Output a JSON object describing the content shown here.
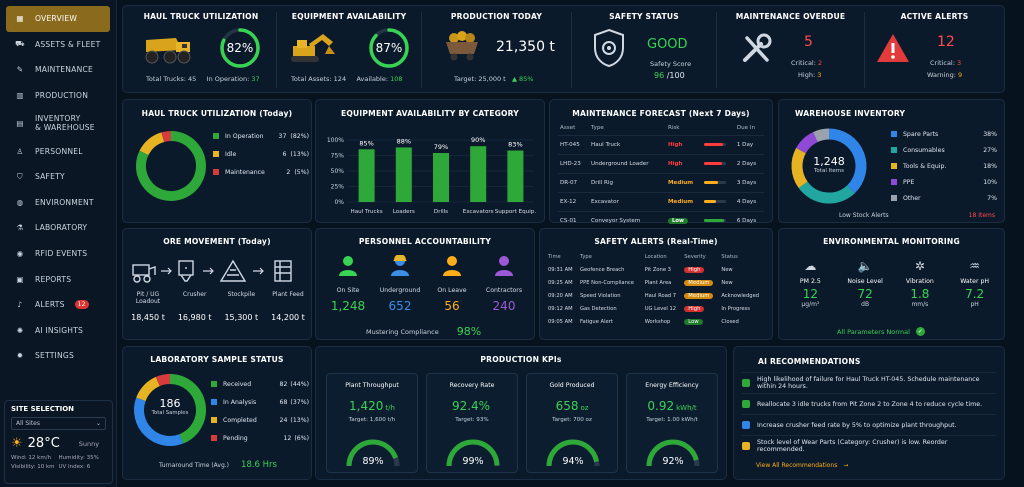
{
  "nav": [
    {
      "label": "OVERVIEW",
      "icon": "grid-icon"
    },
    {
      "label": "ASSETS & FLEET",
      "icon": "truck-icon"
    },
    {
      "label": "MAINTENANCE",
      "icon": "wrench-icon"
    },
    {
      "label": "PRODUCTION",
      "icon": "factory-icon"
    },
    {
      "label": "INVENTORY & WAREHOUSE",
      "l2": "& WAREHOUSE",
      "l1": "INVENTORY",
      "icon": "boxes-icon"
    },
    {
      "label": "PERSONNEL",
      "icon": "person-icon"
    },
    {
      "label": "SAFETY",
      "icon": "shield-icon"
    },
    {
      "label": "ENVIRONMENT",
      "icon": "globe-icon"
    },
    {
      "label": "LABORATORY",
      "icon": "flask-icon"
    },
    {
      "label": "RFID EVENTS",
      "icon": "rfid-icon"
    },
    {
      "label": "REPORTS",
      "icon": "report-icon"
    },
    {
      "label": "ALERTS",
      "icon": "bell-icon",
      "badge": "12"
    },
    {
      "label": "AI INSIGHTS",
      "icon": "ai-icon"
    },
    {
      "label": "SETTINGS",
      "icon": "gear-icon"
    }
  ],
  "site": {
    "title": "SITE SELECTION",
    "selected": "All Sites",
    "temp": "28°C",
    "cond": "Sunny",
    "wind": "Wind: 12 km/h",
    "humidity": "Humidity: 35%",
    "visibility": "Visibility: 10 km",
    "uv": "UV Index: 6"
  },
  "kpis": {
    "haul": {
      "title": "HAUL TRUCK UTILIZATION",
      "pct": "82%",
      "pct_value": 0.82,
      "total_label": "Total Trucks:",
      "total": "45",
      "op_label": "In Operation:",
      "op": "37"
    },
    "equip": {
      "title": "EQUIPMENT AVAILABILITY",
      "pct": "87%",
      "pct_value": 0.87,
      "total_label": "Total Assets:",
      "total": "124",
      "avail_label": "Available:",
      "avail": "108"
    },
    "prod": {
      "title": "PRODUCTION TODAY",
      "value": "21,350 t",
      "target": "Target: 25,000 t",
      "delta": "▲ 85%"
    },
    "safety": {
      "title": "SAFETY STATUS",
      "status": "GOOD",
      "score_label": "Safety Score",
      "score": "96",
      "score_of": "/100"
    },
    "maint": {
      "title": "MAINTENANCE OVERDUE",
      "value": "5",
      "crit_label": "Critical:",
      "crit": "2",
      "high_label": "High:",
      "high": "3"
    },
    "alerts": {
      "title": "ACTIVE ALERTS",
      "value": "12",
      "crit_label": "Critical:",
      "crit": "3",
      "warn_label": "Warning:",
      "warn": "9"
    }
  },
  "haul_today": {
    "title": "HAUL TRUCK UTILIZATION (Today)",
    "legend": [
      {
        "label": "In Operation",
        "count": "37",
        "pct": "(82%)",
        "color": "#2fa83a",
        "value": 37
      },
      {
        "label": "Idle",
        "count": "6",
        "pct": "(13%)",
        "color": "#e6b422",
        "value": 6
      },
      {
        "label": "Maintenance",
        "count": "2",
        "pct": "(5%)",
        "color": "#d63c3c",
        "value": 2
      }
    ]
  },
  "chart_data": {
    "type": "bar",
    "title": "EQUIPMENT AVAILABILITY BY CATEGORY",
    "categories": [
      "Haul Trucks",
      "Loaders",
      "Drills",
      "Excavators",
      "Support Equip."
    ],
    "values": [
      85,
      88,
      79,
      90,
      83
    ],
    "value_labels": [
      "85%",
      "88%",
      "79%",
      "90%",
      "83%"
    ],
    "ylim": [
      0,
      100
    ],
    "yticks": [
      "0%",
      "25%",
      "50%",
      "75%",
      "100%"
    ],
    "color": "#2fa83a"
  },
  "maint_forecast": {
    "title": "MAINTENANCE FORECAST (Next 7 Days)",
    "headers": [
      "Asset",
      "Type",
      "Risk",
      "Due In"
    ],
    "rows": [
      {
        "asset": "HT-045",
        "type": "Haul Truck",
        "risk": "High",
        "due": "1 Day",
        "level": 0.85,
        "color": "#ff3b3b"
      },
      {
        "asset": "LHD-23",
        "type": "Underground Loader",
        "risk": "High",
        "due": "2 Days",
        "level": 0.8,
        "color": "#ff3b3b"
      },
      {
        "asset": "DR-07",
        "type": "Drill Rig",
        "risk": "Medium",
        "due": "3 Days",
        "level": 0.6,
        "color": "#ffae1a"
      },
      {
        "asset": "EX-12",
        "type": "Excavator",
        "risk": "Medium",
        "due": "4 Days",
        "level": 0.55,
        "color": "#ffae1a"
      },
      {
        "asset": "CS-01",
        "type": "Conveyor System",
        "risk": "Low",
        "due": "6 Days",
        "level": 0.9,
        "color": "#2fa83a"
      }
    ]
  },
  "warehouse": {
    "title": "WAREHOUSE INVENTORY",
    "total": "1,248",
    "total_label": "Total Items",
    "low_label": "Low Stock Alerts",
    "low": "18 Items",
    "legend": [
      {
        "label": "Spare Parts",
        "pct": "38%",
        "value": 38,
        "color": "#2f86e8"
      },
      {
        "label": "Consumables",
        "pct": "27%",
        "value": 27,
        "color": "#22a6a0"
      },
      {
        "label": "Tools & Equip.",
        "pct": "18%",
        "value": 18,
        "color": "#e6b422"
      },
      {
        "label": "PPE",
        "pct": "10%",
        "value": 10,
        "color": "#8e4ad6"
      },
      {
        "label": "Other",
        "pct": "7%",
        "value": 7,
        "color": "#9aa3ad"
      }
    ]
  },
  "ore": {
    "title": "ORE MOVEMENT (Today)",
    "steps": [
      {
        "label": "Pit / UG",
        "label2": "Loadout",
        "value": "18,450 t"
      },
      {
        "label": "Crusher",
        "label2": "",
        "value": "16,980 t"
      },
      {
        "label": "Stockpile",
        "label2": "",
        "value": "15,300 t"
      },
      {
        "label": "Plant Feed",
        "label2": "",
        "value": "14,200 t"
      }
    ]
  },
  "personnel": {
    "title": "PERSONNEL ACCOUNTABILITY",
    "groups": [
      {
        "label": "On Site",
        "value": "1,248",
        "color": "#39d353"
      },
      {
        "label": "Underground",
        "value": "652",
        "color": "#3a8ee6"
      },
      {
        "label": "On Leave",
        "value": "56",
        "color": "#ffae1a"
      },
      {
        "label": "Contractors",
        "value": "240",
        "color": "#9b59d6"
      }
    ],
    "muster_label": "Mustering Compliance",
    "muster": "98%"
  },
  "safety_alerts": {
    "title": "SAFETY ALERTS (Real-Time)",
    "headers": [
      "Time",
      "Type",
      "Location",
      "Severity",
      "Status"
    ],
    "rows": [
      [
        "09:31 AM",
        "Geofence Breach",
        "Pit Zone 3",
        "High",
        "New"
      ],
      [
        "09:25 AM",
        "PPE Non-Compliance",
        "Plant Area",
        "Medium",
        "New"
      ],
      [
        "09:20 AM",
        "Speed Violation",
        "Haul Road 7",
        "Medium",
        "Acknowledged"
      ],
      [
        "09:12 AM",
        "Gas Detection",
        "UG Level 12",
        "High",
        "In Progress"
      ],
      [
        "09:05 AM",
        "Fatigue Alert",
        "Workshop",
        "Low",
        "Closed"
      ]
    ]
  },
  "env": {
    "title": "ENVIRONMENTAL MONITORING",
    "items": [
      {
        "label": "PM 2.5",
        "value": "12",
        "unit": "µg/m³",
        "icon": "dust-icon"
      },
      {
        "label": "Noise Level",
        "value": "72",
        "unit": "dB",
        "icon": "speaker-icon"
      },
      {
        "label": "Vibration",
        "value": "1.8",
        "unit": "mm/s",
        "icon": "vibration-icon"
      },
      {
        "label": "Water pH",
        "value": "7.2",
        "unit": "pH",
        "icon": "water-icon"
      }
    ],
    "status": "All  Parameters Normal"
  },
  "lab": {
    "title": "LABORATORY SAMPLE STATUS",
    "total": "186",
    "total_label": "Total Samples",
    "legend": [
      {
        "label": "Received",
        "count": "82",
        "pct": "(44%)",
        "value": 82,
        "color": "#2fa83a"
      },
      {
        "label": "In Analysis",
        "count": "68",
        "pct": "(37%)",
        "value": 68,
        "color": "#2f86e8"
      },
      {
        "label": "Completed",
        "count": "24",
        "pct": "(13%)",
        "value": 24,
        "color": "#e6b422"
      },
      {
        "label": "Pending",
        "count": "12",
        "pct": "(6%)",
        "value": 12,
        "color": "#d63c3c"
      }
    ],
    "tat_label": "Turnaround Time (Avg.)",
    "tat": "18.6 Hrs"
  },
  "prod_kpis": {
    "title": "PRODUCTION KPIs",
    "items": [
      {
        "label": "Plant Throughput",
        "value": "1,420",
        "unit": "t/h",
        "target": "Target: 1,600 t/h",
        "pct": "89%",
        "level": 0.89
      },
      {
        "label": "Recovery Rate",
        "value": "92.4%",
        "unit": "",
        "target": "Target: 93%",
        "pct": "99%",
        "level": 0.99
      },
      {
        "label": "Gold Produced",
        "value": "658",
        "unit": "oz",
        "target": "Target: 700 oz",
        "pct": "94%",
        "level": 0.94
      },
      {
        "label": "Energy Efficiency",
        "value": "0.92",
        "unit": "kWh/t",
        "target": "Target: 1.00 kWh/t",
        "pct": "92%",
        "level": 0.92
      }
    ]
  },
  "ai": {
    "title": "AI RECOMMENDATIONS",
    "items": [
      {
        "text": "High likelihood of failure for Haul Truck HT-045. Schedule maintenance within 24 hours.",
        "color": "#2fa83a"
      },
      {
        "text": "Reallocate 3 idle trucks from Pit Zone 2 to Zone 4 to reduce cycle time.",
        "color": "#2fa83a"
      },
      {
        "text": "Increase crusher feed rate by 5% to optimize plant throughput.",
        "color": "#2f86e8"
      },
      {
        "text": "Stock level of Wear Parts (Category: Crusher) is low. Reorder recommended.",
        "color": "#e6b422"
      }
    ],
    "link": "View All Recommendations"
  }
}
